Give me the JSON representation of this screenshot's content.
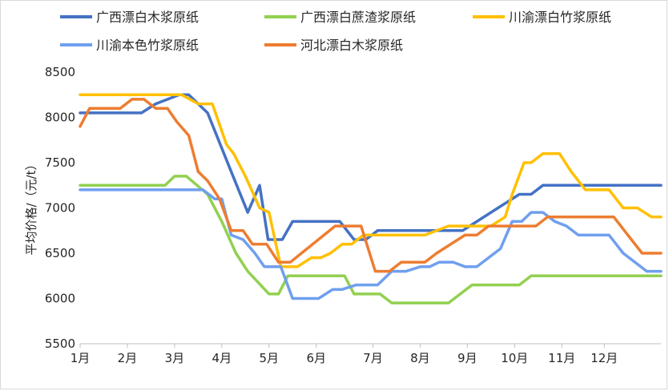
{
  "chart_data": {
    "type": "line",
    "ylabel": "平均价格/（元/t）",
    "ylim": [
      5500,
      8500
    ],
    "yticks": [
      5500,
      6000,
      6500,
      7000,
      7500,
      8000,
      8500
    ],
    "xlim": [
      0,
      12.3
    ],
    "xticks": [
      {
        "label": "1月",
        "x": 0
      },
      {
        "label": "2月",
        "x": 1
      },
      {
        "label": "3月",
        "x": 2
      },
      {
        "label": "4月",
        "x": 3
      },
      {
        "label": "5月",
        "x": 4
      },
      {
        "label": "6月",
        "x": 5
      },
      {
        "label": "7月",
        "x": 6.2
      },
      {
        "label": "8月",
        "x": 7.2
      },
      {
        "label": "9月",
        "x": 8.2
      },
      {
        "label": "10月",
        "x": 9.2
      },
      {
        "label": "11月",
        "x": 10.2
      },
      {
        "label": "12月",
        "x": 11.1
      }
    ],
    "legend_position": "top",
    "series": [
      {
        "name": "广西漂白木浆原纸",
        "color": "#4472c4",
        "x": [
          0,
          1.3,
          1.6,
          2.1,
          2.3,
          2.7,
          3.2,
          3.55,
          3.8,
          3.98,
          4.28,
          4.5,
          5.5,
          5.8,
          6.05,
          6.3,
          7.5,
          8.1,
          8.7,
          9.3,
          9.55,
          9.8,
          12.3
        ],
        "y": [
          8050,
          8050,
          8150,
          8250,
          8250,
          8050,
          7400,
          6950,
          7250,
          6650,
          6650,
          6850,
          6850,
          6650,
          6650,
          6750,
          6750,
          6750,
          6950,
          7150,
          7150,
          7250,
          7250
        ]
      },
      {
        "name": "广西漂白蔗渣浆原纸",
        "color": "#92d050",
        "x": [
          0,
          1.8,
          2.0,
          2.25,
          2.7,
          3.0,
          3.3,
          3.55,
          4.0,
          4.2,
          4.4,
          5.6,
          5.8,
          6.35,
          6.6,
          7.8,
          8.3,
          9.3,
          9.55,
          12.3
        ],
        "y": [
          7250,
          7250,
          7350,
          7350,
          7150,
          6850,
          6500,
          6300,
          6050,
          6050,
          6250,
          6250,
          6050,
          6050,
          5950,
          5950,
          6150,
          6150,
          6250,
          6250
        ],
        "dashed": true
      },
      {
        "name": "川渝漂白竹浆原纸",
        "color": "#ffc000",
        "x": [
          0,
          1.9,
          2.15,
          2.5,
          2.8,
          3.1,
          3.25,
          3.5,
          3.8,
          4.0,
          4.25,
          4.6,
          4.9,
          5.1,
          5.3,
          5.55,
          5.75,
          6.0,
          6.25,
          6.5,
          6.8,
          7.1,
          7.3,
          7.55,
          7.8,
          8.05,
          8.5,
          8.7,
          9.0,
          9.15,
          9.4,
          9.55,
          9.8,
          10.15,
          10.4,
          10.7,
          11.0,
          11.2,
          11.5,
          11.8,
          12.1,
          12.3
        ],
        "y": [
          8250,
          8250,
          8250,
          8150,
          8150,
          7700,
          7600,
          7350,
          7000,
          6950,
          6350,
          6350,
          6450,
          6450,
          6500,
          6600,
          6600,
          6700,
          6700,
          6700,
          6700,
          6700,
          6700,
          6750,
          6800,
          6800,
          6800,
          6800,
          6900,
          7150,
          7500,
          7500,
          7600,
          7600,
          7400,
          7200,
          7200,
          7200,
          7000,
          7000,
          6900,
          6900
        ]
      },
      {
        "name": "川渝本色竹浆原纸",
        "color": "#6f9fef",
        "x": [
          0,
          2.6,
          2.85,
          3.0,
          3.2,
          3.45,
          3.7,
          3.9,
          4.25,
          4.5,
          4.75,
          5.05,
          5.35,
          5.55,
          5.85,
          6.1,
          6.3,
          6.6,
          6.9,
          7.2,
          7.4,
          7.6,
          7.9,
          8.15,
          8.4,
          8.65,
          8.9,
          9.15,
          9.35,
          9.55,
          9.8,
          10.05,
          10.3,
          10.55,
          10.9,
          11.2,
          11.5,
          12.0,
          12.3
        ],
        "y": [
          7200,
          7200,
          7100,
          7100,
          6700,
          6650,
          6500,
          6350,
          6350,
          6000,
          6000,
          6000,
          6100,
          6100,
          6150,
          6150,
          6150,
          6300,
          6300,
          6350,
          6350,
          6400,
          6400,
          6350,
          6350,
          6450,
          6550,
          6850,
          6850,
          6950,
          6950,
          6850,
          6800,
          6700,
          6700,
          6700,
          6500,
          6300,
          6300
        ]
      },
      {
        "name": "河北漂白木浆原纸",
        "color": "#ed7d31",
        "x": [
          0,
          0.2,
          0.55,
          0.85,
          1.1,
          1.35,
          1.6,
          1.85,
          2.05,
          2.3,
          2.5,
          2.7,
          2.95,
          3.2,
          3.45,
          3.65,
          3.95,
          4.2,
          4.45,
          5.4,
          5.7,
          5.95,
          6.25,
          6.55,
          6.8,
          7.1,
          7.3,
          7.55,
          7.85,
          8.15,
          8.4,
          8.65,
          8.9,
          9.15,
          9.4,
          9.65,
          9.9,
          10.15,
          10.4,
          10.7,
          11.0,
          11.3,
          11.6,
          11.9,
          12.3
        ],
        "y": [
          7900,
          8100,
          8100,
          8100,
          8200,
          8200,
          8100,
          8100,
          7950,
          7800,
          7400,
          7300,
          7100,
          6750,
          6750,
          6600,
          6600,
          6400,
          6400,
          6800,
          6800,
          6800,
          6300,
          6300,
          6400,
          6400,
          6400,
          6500,
          6600,
          6700,
          6700,
          6800,
          6800,
          6800,
          6800,
          6800,
          6900,
          6900,
          6900,
          6900,
          6900,
          6900,
          6700,
          6500,
          6500
        ]
      }
    ]
  }
}
